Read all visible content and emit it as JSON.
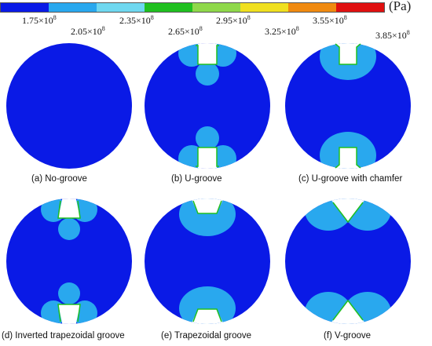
{
  "legend": {
    "unit": "(Pa)",
    "colors": [
      "#0a1ae6",
      "#29a8ee",
      "#6fd8f0",
      "#20c020",
      "#8fd84a",
      "#f0e020",
      "#f08a10",
      "#e01010"
    ],
    "ticks": [
      {
        "mantissa": "1.75",
        "exp": "8"
      },
      {
        "mantissa": "2.05",
        "exp": "8"
      },
      {
        "mantissa": "2.35",
        "exp": "8"
      },
      {
        "mantissa": "2.65",
        "exp": "8"
      },
      {
        "mantissa": "2.95",
        "exp": "8"
      },
      {
        "mantissa": "3.25",
        "exp": "8"
      },
      {
        "mantissa": "3.55",
        "exp": "8"
      },
      {
        "mantissa": "3.85",
        "exp": "8"
      }
    ]
  },
  "panels": [
    {
      "id": "a",
      "caption": "(a) No-groove",
      "groove": "none"
    },
    {
      "id": "b",
      "caption": "(b) U-groove",
      "groove": "u"
    },
    {
      "id": "c",
      "caption": "(c) U-groove with chamfer",
      "groove": "u-chamfer"
    },
    {
      "id": "d",
      "caption": "(d) Inverted trapezoidal groove",
      "groove": "inverted-trapezoid"
    },
    {
      "id": "e",
      "caption": "(e) Trapezoidal groove",
      "groove": "trapezoid"
    },
    {
      "id": "f",
      "caption": "(f) V-groove",
      "groove": "v"
    }
  ],
  "colors": {
    "base": "#0a1ae6",
    "mid": "#29a8ee",
    "light": "#6fd8f0",
    "edge": "#20c020"
  }
}
